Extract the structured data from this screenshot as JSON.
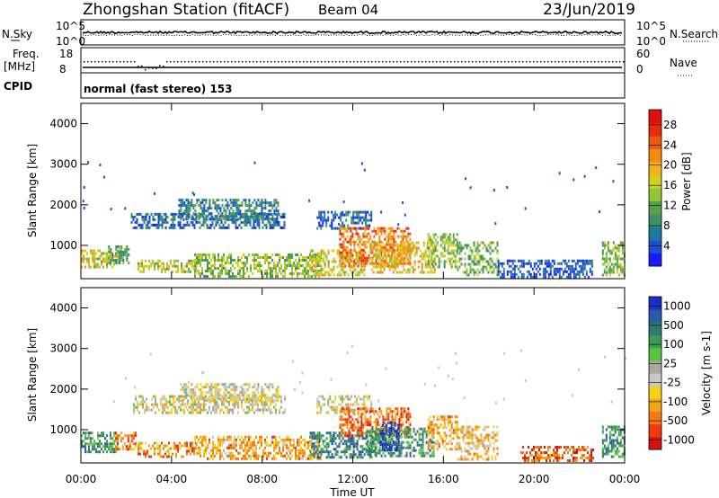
{
  "header": {
    "station": "Zhongshan Station (fitACF)",
    "beam": "Beam 04",
    "date": "23/Jun/2019"
  },
  "top_panels": {
    "nsky_label": "N.Sky",
    "nsky_ticks": [
      "10^5",
      "10^0"
    ],
    "nsearch_label": "N.Search",
    "nsearch_ticks": [
      "10^5",
      "10^0"
    ],
    "freq_label": "Freq.",
    "freq_unit": "[MHz]",
    "freq_ticks": [
      "18",
      "8"
    ],
    "nave_label": "Nave",
    "nave_ticks": [
      "60",
      "0"
    ],
    "cpid_label": "CPID",
    "cpid_text": "normal (fast stereo) 153"
  },
  "chart_data": [
    {
      "type": "heatmap",
      "name": "power",
      "ylabel": "Slant Range [km]",
      "y_ticks": [
        "4000",
        "3000",
        "2000",
        "1000"
      ],
      "y_tick_values": [
        4000,
        3000,
        2000,
        1000
      ],
      "ylim": [
        180,
        4500
      ],
      "xlim": [
        0,
        24
      ],
      "colorbar_label": "Power [dB]",
      "colorbar_ticks": [
        "28",
        "24",
        "20",
        "16",
        "12",
        "8",
        "4"
      ],
      "colorbar_tick_values": [
        28,
        24,
        20,
        16,
        12,
        8,
        4
      ],
      "colorbar_range": [
        0,
        31
      ],
      "colorbar_colors": [
        "#1a1aff",
        "#1f4fcf",
        "#1e7a9e",
        "#3e8f6a",
        "#5aa045",
        "#8fc63d",
        "#d2d21e",
        "#f0b418",
        "#f28a14",
        "#ee5a12",
        "#e82a10",
        "#e01010"
      ],
      "regions": [
        {
          "t0": 0.0,
          "t1": 1.6,
          "r0": 500,
          "r1": 900,
          "level": 0.55
        },
        {
          "t0": 1.2,
          "t1": 2.1,
          "r0": 600,
          "r1": 1000,
          "level": 0.35
        },
        {
          "t0": 2.5,
          "t1": 5.1,
          "r0": 350,
          "r1": 650,
          "level": 0.5
        },
        {
          "t0": 2.2,
          "t1": 9.0,
          "r0": 1450,
          "r1": 1800,
          "level": 0.2
        },
        {
          "t0": 4.3,
          "t1": 8.7,
          "r0": 1650,
          "r1": 2150,
          "level": 0.25
        },
        {
          "t0": 5.0,
          "t1": 10.6,
          "r0": 250,
          "r1": 800,
          "level": 0.45
        },
        {
          "t0": 10.4,
          "t1": 12.8,
          "r0": 1450,
          "r1": 1850,
          "level": 0.2
        },
        {
          "t0": 10.1,
          "t1": 12.5,
          "r0": 300,
          "r1": 900,
          "level": 0.55
        },
        {
          "t0": 11.4,
          "t1": 14.5,
          "r0": 500,
          "r1": 1450,
          "level": 0.75
        },
        {
          "t0": 12.8,
          "t1": 15.6,
          "r0": 350,
          "r1": 1100,
          "level": 0.6
        },
        {
          "t0": 15.3,
          "t1": 16.6,
          "r0": 500,
          "r1": 1300,
          "level": 0.45
        },
        {
          "t0": 16.6,
          "t1": 18.4,
          "r0": 300,
          "r1": 1100,
          "level": 0.4
        },
        {
          "t0": 18.4,
          "t1": 22.6,
          "r0": 200,
          "r1": 650,
          "level": 0.15
        },
        {
          "t0": 23.0,
          "t1": 24.0,
          "r0": 300,
          "r1": 1100,
          "level": 0.4
        }
      ]
    },
    {
      "type": "heatmap",
      "name": "velocity",
      "ylabel": "Slant Range [km]",
      "y_ticks": [
        "4000",
        "3000",
        "2000",
        "1000"
      ],
      "y_tick_values": [
        4000,
        3000,
        2000,
        1000
      ],
      "ylim": [
        180,
        4500
      ],
      "xlim": [
        0,
        24
      ],
      "xlabel": "Time UT",
      "x_ticks": [
        "00:00",
        "04:00",
        "08:00",
        "12:00",
        "16:00",
        "20:00",
        "00:00"
      ],
      "x_tick_values": [
        0,
        4,
        8,
        12,
        16,
        20,
        24
      ],
      "colorbar_label": "Velocity [m s-1]",
      "colorbar_ticks": [
        "1000",
        "500",
        "100",
        "25",
        "-25",
        "-100",
        "-500",
        "-1000"
      ],
      "colorbar_tick_values": [
        1000,
        500,
        100,
        25,
        -25,
        -100,
        -500,
        -1000
      ],
      "colorbar_colors": [
        "#d81010",
        "#ee3a10",
        "#f27a14",
        "#f4a418",
        "#f3d21c",
        "#c8c8c0",
        "#a8a89c",
        "#5ac440",
        "#3e9a58",
        "#2f7a6a",
        "#2a5aa8",
        "#1a2ec8"
      ],
      "regions": [
        {
          "t0": 0.0,
          "t1": 1.6,
          "r0": 450,
          "r1": 950,
          "level": 0.7
        },
        {
          "t0": 1.5,
          "t1": 2.4,
          "r0": 550,
          "r1": 950,
          "level": 0.2
        },
        {
          "t0": 2.5,
          "t1": 5.1,
          "r0": 350,
          "r1": 700,
          "level": 0.25
        },
        {
          "t0": 2.3,
          "t1": 9.0,
          "r0": 1450,
          "r1": 1850,
          "level": 0.46
        },
        {
          "t0": 4.3,
          "t1": 8.7,
          "r0": 1700,
          "r1": 2150,
          "level": 0.46
        },
        {
          "t0": 5.0,
          "t1": 10.6,
          "r0": 300,
          "r1": 850,
          "level": 0.3
        },
        {
          "t0": 10.4,
          "t1": 12.8,
          "r0": 1450,
          "r1": 1850,
          "level": 0.46
        },
        {
          "t0": 10.1,
          "t1": 13.0,
          "r0": 300,
          "r1": 950,
          "level": 0.78
        },
        {
          "t0": 11.4,
          "t1": 14.5,
          "r0": 850,
          "r1": 1550,
          "level": 0.2
        },
        {
          "t0": 12.6,
          "t1": 15.6,
          "r0": 350,
          "r1": 1050,
          "level": 0.72
        },
        {
          "t0": 13.2,
          "t1": 14.0,
          "r0": 500,
          "r1": 1200,
          "level": 0.95
        },
        {
          "t0": 15.3,
          "t1": 16.6,
          "r0": 550,
          "r1": 1350,
          "level": 0.3
        },
        {
          "t0": 16.6,
          "t1": 18.4,
          "r0": 300,
          "r1": 1100,
          "level": 0.35
        },
        {
          "t0": 19.4,
          "t1": 22.6,
          "r0": 250,
          "r1": 600,
          "level": 0.18
        },
        {
          "t0": 23.0,
          "t1": 24.0,
          "r0": 350,
          "r1": 1100,
          "level": 0.75
        }
      ]
    }
  ]
}
